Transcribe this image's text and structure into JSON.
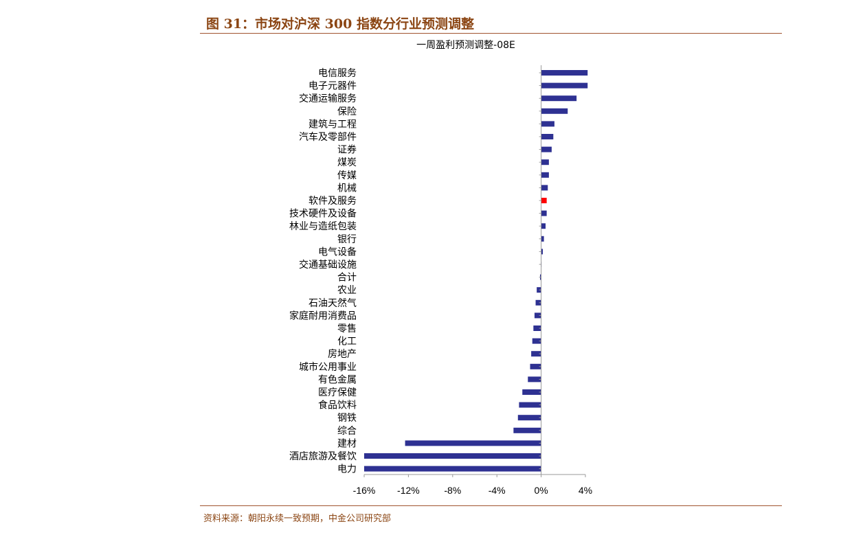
{
  "header": {
    "figure_title": "图 31：市场对沪深 300 指数分行业预测调整"
  },
  "footer": {
    "source": "资料来源：朝阳永续一致预期，中金公司研究部"
  },
  "colors": {
    "bar": "#2e3192",
    "highlight": "#ff0000",
    "accent": "#8b4513"
  },
  "chart_data": {
    "type": "bar",
    "orientation": "horizontal",
    "title": "一周盈利预测调整-08E",
    "xlabel": "",
    "ylabel": "",
    "xlim": [
      -16,
      4
    ],
    "xticks": [
      -16,
      -12,
      -8,
      -4,
      0,
      4
    ],
    "xtick_labels": [
      "-16%",
      "-12%",
      "-8%",
      "-4%",
      "0%",
      "4%"
    ],
    "grid": false,
    "highlight_category": "软件及服务",
    "categories": [
      "电信服务",
      "电子元器件",
      "交通运输服务",
      "保险",
      "建筑与工程",
      "汽车及零部件",
      "证券",
      "煤炭",
      "传媒",
      "机械",
      "软件及服务",
      "技术硬件及设备",
      "林业与造纸包装",
      "银行",
      "电气设备",
      "交通基础设施",
      "合计",
      "农业",
      "石油天然气",
      "家庭耐用消费品",
      "零售",
      "化工",
      "房地产",
      "城市公用事业",
      "有色金属",
      "医疗保健",
      "食品饮料",
      "钢铁",
      "综合",
      "建材",
      "酒店旅游及餐饮",
      "电力"
    ],
    "values": [
      4.2,
      4.2,
      3.2,
      2.4,
      1.2,
      1.1,
      0.95,
      0.7,
      0.7,
      0.6,
      0.5,
      0.5,
      0.4,
      0.25,
      0.15,
      0.0,
      -0.1,
      -0.4,
      -0.5,
      -0.6,
      -0.7,
      -0.8,
      -0.9,
      -1.0,
      -1.2,
      -1.7,
      -2.0,
      -2.1,
      -2.5,
      -12.3,
      -16.0,
      -16.0
    ]
  }
}
